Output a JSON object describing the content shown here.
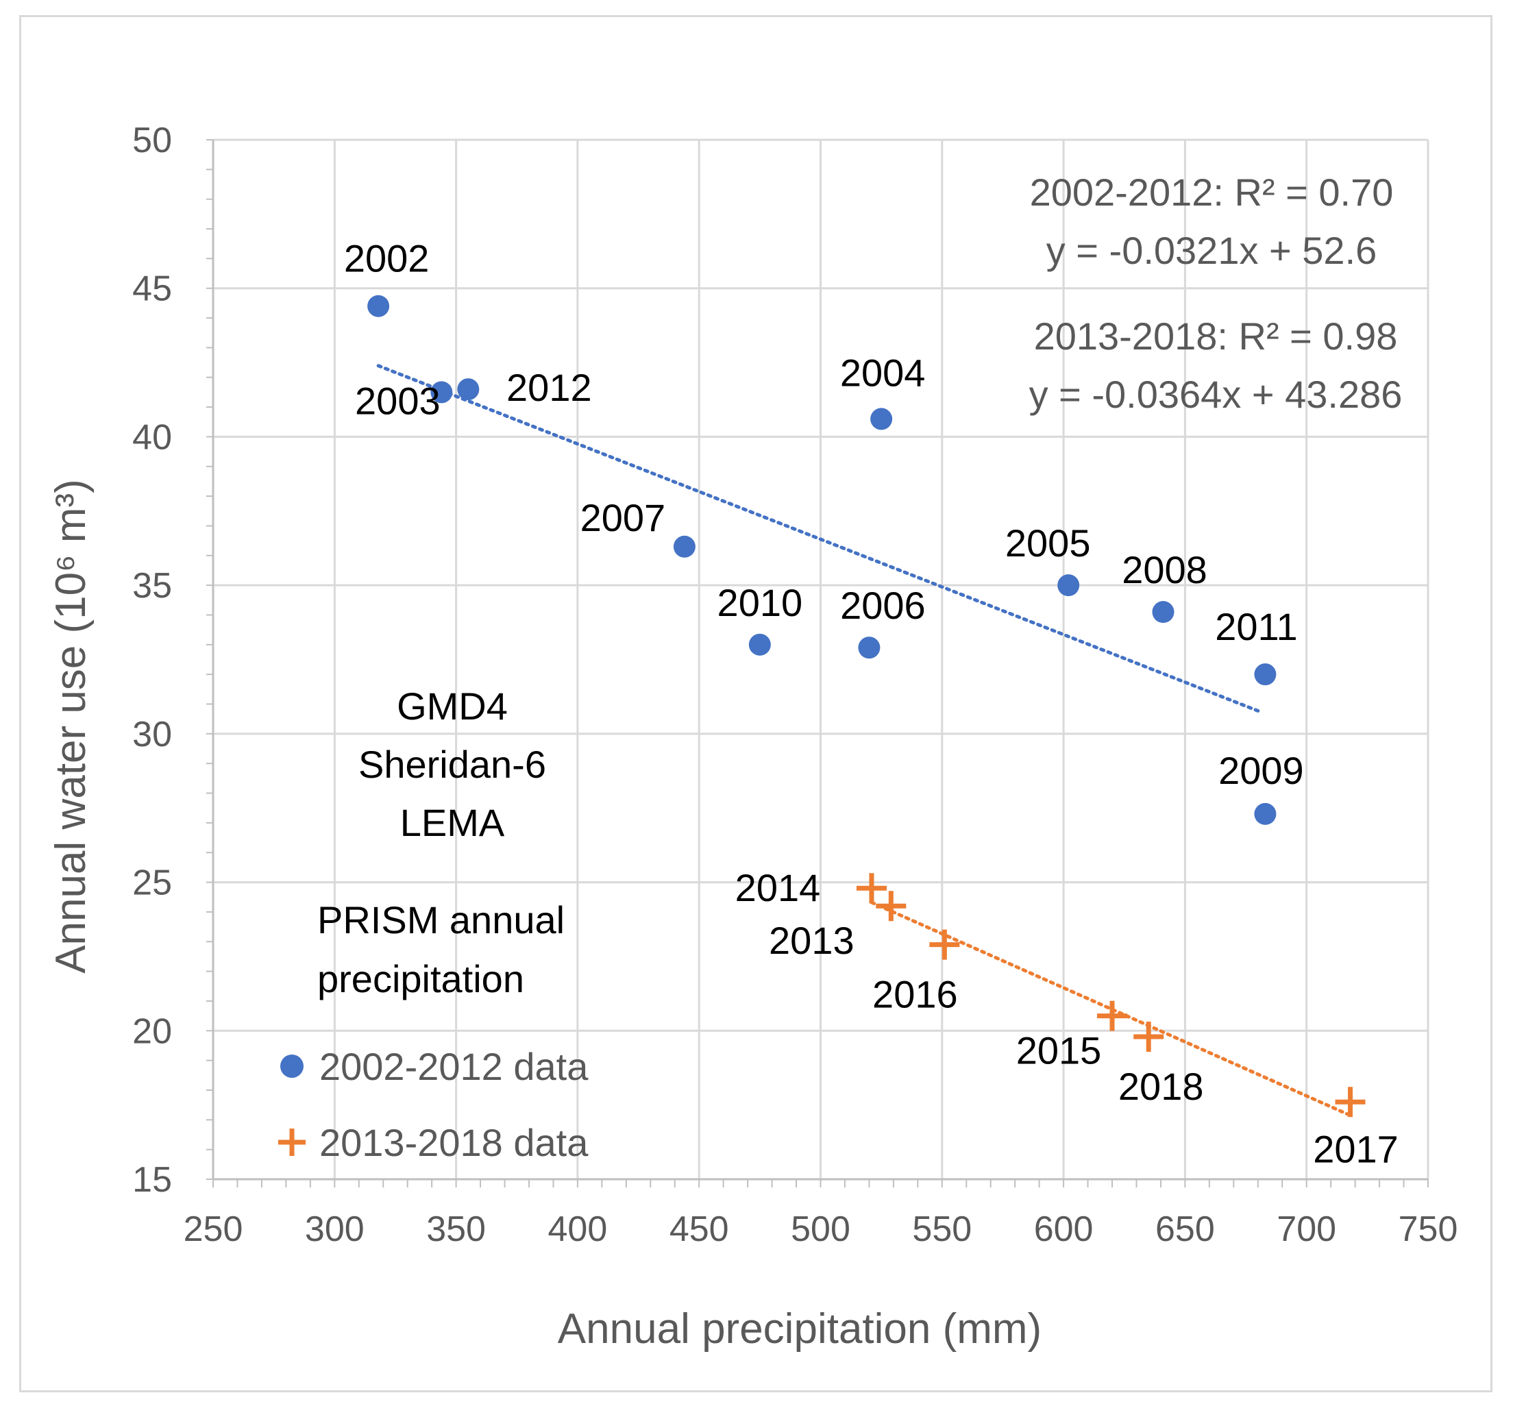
{
  "chart_data": {
    "type": "scatter",
    "xlabel": "Annual precipitation (mm)",
    "ylabel": "Annual water use (10⁶ m³)",
    "xlim": [
      250,
      750
    ],
    "ylim": [
      15,
      50
    ],
    "x_ticks": [
      "250",
      "300",
      "350",
      "400",
      "450",
      "500",
      "550",
      "600",
      "650",
      "700",
      "750"
    ],
    "y_ticks": [
      "15",
      "20",
      "25",
      "30",
      "35",
      "40",
      "45",
      "50"
    ],
    "grid": true,
    "colors": {
      "series1": "#4472c4",
      "series2": "#ed7d31",
      "grid": "#d9d9d9",
      "axis": "#bfbfbf"
    },
    "series": [
      {
        "name": "2002-2012 data",
        "marker": "circle",
        "points": [
          {
            "label": "2002",
            "x": 318,
            "y": 44.4
          },
          {
            "label": "2003",
            "x": 344,
            "y": 41.5
          },
          {
            "label": "2012",
            "x": 355,
            "y": 41.6
          },
          {
            "label": "2004",
            "x": 525,
            "y": 40.6
          },
          {
            "label": "2007",
            "x": 444,
            "y": 36.3
          },
          {
            "label": "2010",
            "x": 475,
            "y": 33.0
          },
          {
            "label": "2006",
            "x": 520,
            "y": 32.9
          },
          {
            "label": "2005",
            "x": 602,
            "y": 35.0
          },
          {
            "label": "2008",
            "x": 641,
            "y": 34.1
          },
          {
            "label": "2011",
            "x": 683,
            "y": 32.0
          },
          {
            "label": "2009",
            "x": 683,
            "y": 27.3
          }
        ],
        "trendline": {
          "x_start": 318,
          "x_end": 680,
          "slope": -0.0321,
          "intercept": 52.6
        },
        "equation": "y = -0.0321x + 52.6",
        "r2_text": "2002-2012: R² = 0.70"
      },
      {
        "name": "2013-2018 data",
        "marker": "plus",
        "points": [
          {
            "label": "2014",
            "x": 521,
            "y": 24.8
          },
          {
            "label": "2013",
            "x": 529,
            "y": 24.2
          },
          {
            "label": "2016",
            "x": 551,
            "y": 22.9
          },
          {
            "label": "2015",
            "x": 620,
            "y": 20.5
          },
          {
            "label": "2018",
            "x": 635,
            "y": 19.8
          },
          {
            "label": "2017",
            "x": 718,
            "y": 17.6
          }
        ],
        "trendline": {
          "x_start": 521,
          "x_end": 718,
          "slope": -0.0364,
          "intercept": 43.286
        },
        "equation": "y = -0.0364x + 43.286",
        "r2_text": "2013-2018: R² = 0.98"
      }
    ],
    "annotations": {
      "region_lines": [
        "GMD4",
        "Sheridan-6",
        "LEMA"
      ],
      "source_lines": [
        "PRISM annual",
        "precipitation"
      ]
    },
    "legend_position": "bottom-left"
  }
}
